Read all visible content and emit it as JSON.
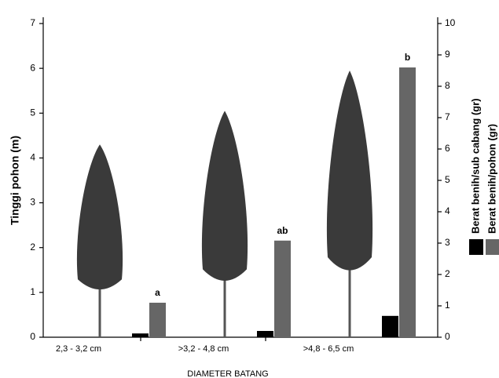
{
  "chart_data": {
    "type": "bar",
    "ylabel": "Tinggi pohon (m)",
    "xlabel": "DIAMETER BATANG",
    "categories": [
      "2,3 - 3,2 cm",
      ">3,2 - 4,8 cm",
      ">4,8 - 6,5 cm"
    ],
    "tree_heights": [
      4.3,
      5.05,
      5.95
    ],
    "tree_color": "#3a3a3a",
    "ylim": [
      0,
      7
    ],
    "yticks": [
      0,
      1,
      2,
      3,
      4,
      5,
      6,
      7
    ],
    "y2lim": [
      0,
      10
    ],
    "y2ticks": [
      0,
      1,
      2,
      3,
      4,
      5,
      6,
      7,
      8,
      9,
      10
    ],
    "series": [
      {
        "name": "Berat benih/sub cabang (gr)",
        "color": "#000000",
        "axis": "y2",
        "values": [
          0.12,
          0.2,
          0.68
        ]
      },
      {
        "name": "Berat benih/pohon (gr)",
        "color": "#666666",
        "axis": "y2",
        "values": [
          1.1,
          3.08,
          8.6
        ]
      }
    ],
    "annotations": [
      "a",
      "ab",
      "b"
    ]
  }
}
